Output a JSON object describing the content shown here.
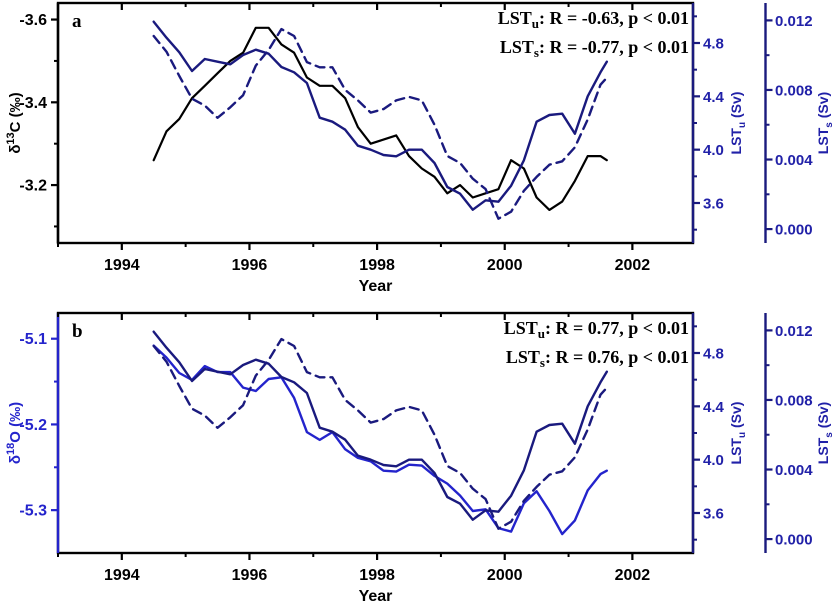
{
  "figure": {
    "description_colors": {
      "black": "#000000",
      "navy_line": "#1a1a7e",
      "bright_blue": "#2424cc",
      "right_axis_label": "#2121a8"
    }
  },
  "chart_data": [
    {
      "type": "line",
      "panel_label": "a",
      "x_axis": {
        "label": "Year",
        "range": [
          1993.0,
          2002.95
        ],
        "major_ticks": [
          {
            "v": 1994,
            "label": "1994"
          },
          {
            "v": 1996,
            "label": "1996"
          },
          {
            "v": 1998,
            "label": "1998"
          },
          {
            "v": 2000,
            "label": "2000"
          },
          {
            "v": 2002,
            "label": "2002"
          }
        ],
        "minor_ticks": [
          1993,
          1995,
          1997,
          1999,
          2001
        ]
      },
      "left_axis": {
        "label_parts": [
          {
            "text": "δ"
          },
          {
            "text": "13",
            "sup": true
          },
          {
            "text": "C (‰)"
          }
        ],
        "range": [
          -3.64,
          -3.06
        ],
        "inverted": true,
        "major_ticks": [
          {
            "v": -3.6,
            "label": "-3.6"
          },
          {
            "v": -3.4,
            "label": "-3.4"
          },
          {
            "v": -3.2,
            "label": "-3.2"
          }
        ],
        "minor_ticks": [
          -3.5,
          -3.3,
          -3.1
        ],
        "spine_color": "#000000",
        "text_color": "#000000"
      },
      "right1_axis": {
        "label_parts": [
          {
            "text": "LST"
          },
          {
            "text": "u",
            "sub": true
          },
          {
            "text": " (Sv)"
          }
        ],
        "range": [
          3.3,
          5.1
        ],
        "inverted": false,
        "major_ticks": [
          {
            "v": 4.8,
            "label": "4.8"
          },
          {
            "v": 4.4,
            "label": "4.4"
          },
          {
            "v": 4.0,
            "label": "4.0"
          },
          {
            "v": 3.6,
            "label": "3.6"
          }
        ],
        "minor_ticks": [
          5.0,
          4.6,
          4.2,
          3.8,
          3.4
        ],
        "spine_color": "#1a1a7e",
        "text_color": "#2121a8"
      },
      "right2_axis": {
        "label_parts": [
          {
            "text": "LST"
          },
          {
            "text": "s",
            "sub": true
          },
          {
            "text": " (Sv)"
          }
        ],
        "range": [
          -0.0008,
          0.013
        ],
        "inverted": false,
        "major_ticks": [
          {
            "v": 0.012,
            "label": "0.012"
          },
          {
            "v": 0.008,
            "label": "0.008"
          },
          {
            "v": 0.004,
            "label": "0.004"
          },
          {
            "v": 0.0,
            "label": "0.000"
          }
        ],
        "minor_ticks": [
          0.01,
          0.006,
          0.002
        ],
        "spine_color": "#1a1a7e",
        "text_color": "#2121a8"
      },
      "legend": [
        {
          "parts": [
            {
              "text": "LST"
            },
            {
              "text": "u",
              "sub": true
            },
            {
              "text": ": R = -0.63, p < 0.01"
            }
          ]
        },
        {
          "parts": [
            {
              "text": "LST"
            },
            {
              "text": "s",
              "sub": true
            },
            {
              "text": ": R = -0.77, p < 0.01"
            }
          ]
        }
      ],
      "x": [
        1994.5,
        1994.7,
        1994.9,
        1995.1,
        1995.3,
        1995.5,
        1995.7,
        1995.9,
        1996.1,
        1996.3,
        1996.5,
        1996.7,
        1996.9,
        1997.1,
        1997.3,
        1997.5,
        1997.7,
        1997.9,
        1998.1,
        1998.3,
        1998.5,
        1998.7,
        1998.9,
        1999.1,
        1999.3,
        1999.5,
        1999.7,
        1999.9,
        2000.1,
        2000.3,
        2000.5,
        2000.7,
        2000.9,
        2001.1,
        2001.3,
        2001.5,
        2001.6
      ],
      "series": [
        {
          "name": "delta13C",
          "axis": "left",
          "style": "solid",
          "color": "#000000",
          "width": 2.2,
          "values": [
            -3.26,
            -3.33,
            -3.36,
            -3.41,
            -3.44,
            -3.47,
            -3.5,
            -3.52,
            -3.58,
            -3.58,
            -3.54,
            -3.52,
            -3.46,
            -3.44,
            -3.44,
            -3.41,
            -3.34,
            -3.3,
            -3.31,
            -3.32,
            -3.27,
            -3.24,
            -3.22,
            -3.18,
            -3.2,
            -3.17,
            -3.18,
            -3.19,
            -3.26,
            -3.24,
            -3.17,
            -3.14,
            -3.16,
            -3.21,
            -3.27,
            -3.27,
            -3.26
          ]
        },
        {
          "name": "LSTu",
          "axis": "right1",
          "style": "solid",
          "color": "#1a1a7e",
          "width": 2.4,
          "values": [
            4.96,
            4.84,
            4.73,
            4.59,
            4.68,
            4.66,
            4.64,
            4.71,
            4.75,
            4.72,
            4.62,
            4.58,
            4.5,
            4.24,
            4.21,
            4.15,
            4.03,
            4.0,
            3.96,
            3.95,
            4.0,
            4.0,
            3.9,
            3.72,
            3.67,
            3.55,
            3.62,
            3.61,
            3.73,
            3.92,
            4.21,
            4.26,
            4.27,
            4.12,
            4.4,
            4.58,
            4.66
          ]
        },
        {
          "name": "LSTs",
          "axis": "right2",
          "style": "dashed",
          "color": "#1a1a7e",
          "width": 2.4,
          "values": [
            0.0111,
            0.0102,
            0.0088,
            0.0075,
            0.0071,
            0.0064,
            0.007,
            0.0077,
            0.0094,
            0.0103,
            0.0115,
            0.0111,
            0.0096,
            0.0093,
            0.0093,
            0.008,
            0.0074,
            0.0067,
            0.0069,
            0.0074,
            0.0076,
            0.0074,
            0.006,
            0.0042,
            0.0038,
            0.0029,
            0.0023,
            0.0006,
            0.001,
            0.0022,
            0.003,
            0.0037,
            0.0039,
            0.0047,
            0.0063,
            0.0083,
            0.0087
          ]
        }
      ]
    },
    {
      "type": "line",
      "panel_label": "b",
      "x_axis": {
        "label": "Year",
        "range": [
          1993.0,
          2002.95
        ],
        "major_ticks": [
          {
            "v": 1994,
            "label": "1994"
          },
          {
            "v": 1996,
            "label": "1996"
          },
          {
            "v": 1998,
            "label": "1998"
          },
          {
            "v": 2000,
            "label": "2000"
          },
          {
            "v": 2002,
            "label": "2002"
          }
        ],
        "minor_ticks": [
          1993,
          1995,
          1997,
          1999,
          2001
        ]
      },
      "left_axis": {
        "label_parts": [
          {
            "text": "δ"
          },
          {
            "text": "18",
            "sup": true
          },
          {
            "text": "O (‰)"
          }
        ],
        "range": [
          -5.35,
          -5.07
        ],
        "inverted": false,
        "major_ticks": [
          {
            "v": -5.1,
            "label": "-5.1"
          },
          {
            "v": -5.2,
            "label": "-5.2"
          },
          {
            "v": -5.3,
            "label": "-5.3"
          }
        ],
        "minor_ticks": [
          -5.15,
          -5.25
        ],
        "spine_color": "#2424cc",
        "text_color": "#2424cc"
      },
      "right1_axis": {
        "label_parts": [
          {
            "text": "LST"
          },
          {
            "text": "u",
            "sub": true
          },
          {
            "text": " (Sv)"
          }
        ],
        "range": [
          3.3,
          5.1
        ],
        "inverted": false,
        "major_ticks": [
          {
            "v": 4.8,
            "label": "4.8"
          },
          {
            "v": 4.4,
            "label": "4.4"
          },
          {
            "v": 4.0,
            "label": "4.0"
          },
          {
            "v": 3.6,
            "label": "3.6"
          }
        ],
        "minor_ticks": [
          5.0,
          4.6,
          4.2,
          3.8,
          3.4
        ],
        "spine_color": "#1a1a7e",
        "text_color": "#2121a8"
      },
      "right2_axis": {
        "label_parts": [
          {
            "text": "LST"
          },
          {
            "text": "s",
            "sub": true
          },
          {
            "text": " (Sv)"
          }
        ],
        "range": [
          -0.0008,
          0.013
        ],
        "inverted": false,
        "major_ticks": [
          {
            "v": 0.012,
            "label": "0.012"
          },
          {
            "v": 0.008,
            "label": "0.008"
          },
          {
            "v": 0.004,
            "label": "0.004"
          },
          {
            "v": 0.0,
            "label": "0.000"
          }
        ],
        "minor_ticks": [
          0.01,
          0.006,
          0.002
        ],
        "spine_color": "#1a1a7e",
        "text_color": "#2121a8"
      },
      "legend": [
        {
          "parts": [
            {
              "text": "LST"
            },
            {
              "text": "u",
              "sub": true
            },
            {
              "text": ": R = 0.77, p < 0.01"
            }
          ]
        },
        {
          "parts": [
            {
              "text": "LST"
            },
            {
              "text": "s",
              "sub": true
            },
            {
              "text": ": R = 0.76, p < 0.01"
            }
          ]
        }
      ],
      "x": [
        1994.5,
        1994.7,
        1994.9,
        1995.1,
        1995.3,
        1995.5,
        1995.7,
        1995.9,
        1996.1,
        1996.3,
        1996.5,
        1996.7,
        1996.9,
        1997.1,
        1997.3,
        1997.5,
        1997.7,
        1997.9,
        1998.1,
        1998.3,
        1998.5,
        1998.7,
        1998.9,
        1999.1,
        1999.3,
        1999.5,
        1999.7,
        1999.9,
        2000.1,
        2000.3,
        2000.5,
        2000.7,
        2000.9,
        2001.1,
        2001.3,
        2001.5,
        2001.6
      ],
      "series": [
        {
          "name": "delta18O",
          "axis": "left",
          "style": "solid",
          "color": "#2424cc",
          "width": 2.4,
          "values": [
            -5.108,
            -5.122,
            -5.14,
            -5.148,
            -5.132,
            -5.139,
            -5.139,
            -5.157,
            -5.161,
            -5.147,
            -5.145,
            -5.169,
            -5.209,
            -5.218,
            -5.209,
            -5.229,
            -5.239,
            -5.243,
            -5.254,
            -5.255,
            -5.247,
            -5.248,
            -5.26,
            -5.269,
            -5.283,
            -5.301,
            -5.299,
            -5.321,
            -5.325,
            -5.292,
            -5.278,
            -5.301,
            -5.328,
            -5.312,
            -5.277,
            -5.258,
            -5.254
          ]
        },
        {
          "name": "LSTu",
          "axis": "right1",
          "style": "solid",
          "color": "#1a1a7e",
          "width": 2.4,
          "values": [
            4.96,
            4.84,
            4.73,
            4.59,
            4.68,
            4.66,
            4.64,
            4.71,
            4.75,
            4.72,
            4.62,
            4.58,
            4.5,
            4.24,
            4.21,
            4.15,
            4.03,
            4.0,
            3.96,
            3.95,
            4.0,
            4.0,
            3.9,
            3.72,
            3.67,
            3.55,
            3.62,
            3.61,
            3.73,
            3.92,
            4.21,
            4.26,
            4.27,
            4.12,
            4.4,
            4.58,
            4.66
          ]
        },
        {
          "name": "LSTs",
          "axis": "right2",
          "style": "dashed",
          "color": "#1a1a7e",
          "width": 2.4,
          "values": [
            0.0111,
            0.0102,
            0.0088,
            0.0075,
            0.0071,
            0.0064,
            0.007,
            0.0077,
            0.0094,
            0.0103,
            0.0115,
            0.0111,
            0.0096,
            0.0093,
            0.0093,
            0.008,
            0.0074,
            0.0067,
            0.0069,
            0.0074,
            0.0076,
            0.0074,
            0.006,
            0.0042,
            0.0038,
            0.0029,
            0.0023,
            0.0006,
            0.001,
            0.0022,
            0.003,
            0.0037,
            0.0039,
            0.0047,
            0.0063,
            0.0083,
            0.0087
          ]
        }
      ]
    }
  ]
}
